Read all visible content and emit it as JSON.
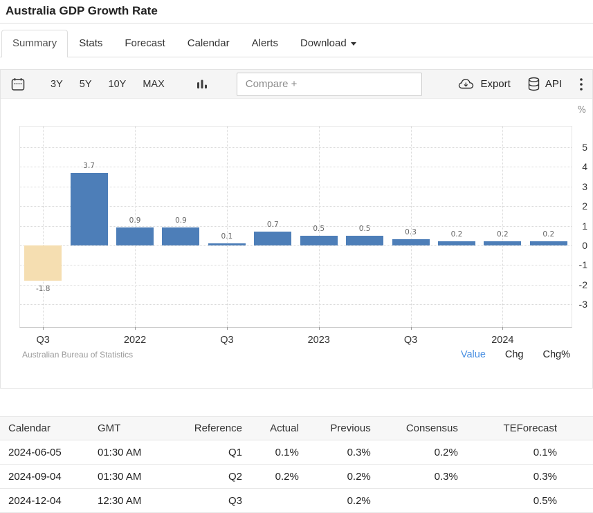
{
  "header": {
    "title": "Australia GDP Growth Rate"
  },
  "tabs": [
    {
      "label": "Summary",
      "active": true
    },
    {
      "label": "Stats",
      "active": false
    },
    {
      "label": "Forecast",
      "active": false
    },
    {
      "label": "Calendar",
      "active": false
    },
    {
      "label": "Alerts",
      "active": false
    },
    {
      "label": "Download",
      "active": false,
      "caret": true
    }
  ],
  "toolbar": {
    "calendar_icon": "calendar-icon",
    "range_buttons": [
      "3Y",
      "5Y",
      "10Y",
      "MAX"
    ],
    "chart_type_icon": "bar-chart-icon",
    "compare_placeholder": "Compare +",
    "export_label": "Export",
    "export_icon": "cloud-download-icon",
    "api_label": "API",
    "api_icon": "database-icon",
    "more_icon": "kebab-menu-icon"
  },
  "chart_data": {
    "type": "bar",
    "title": "Australia GDP Growth Rate",
    "unit_label": "%",
    "values": [
      -1.8,
      3.7,
      0.9,
      0.9,
      0.1,
      0.7,
      0.5,
      0.5,
      0.3,
      0.2,
      0.2,
      0.2
    ],
    "bar_labels": [
      "-1.8",
      "3.7",
      "0.9",
      "0.9",
      "0.1",
      "0.7",
      "0.5",
      "0.5",
      "0.3",
      "0.2",
      "0.2",
      "0.2"
    ],
    "x_ticks": [
      {
        "index": 0,
        "label": "Q3"
      },
      {
        "index": 2,
        "label": "2022"
      },
      {
        "index": 4,
        "label": "Q3"
      },
      {
        "index": 6,
        "label": "2023"
      },
      {
        "index": 8,
        "label": "Q3"
      },
      {
        "index": 10,
        "label": "2024"
      }
    ],
    "y_ticks": [
      5,
      4,
      3,
      2,
      1,
      0,
      -1,
      -2,
      -3
    ],
    "ylim": [
      -4.15,
      6.05
    ],
    "grid": "dotted",
    "legend_position": "none",
    "positive_color": "#4d7eb8",
    "negative_color": "#f5deb1",
    "source": "Australian Bureau of Statistics",
    "modes": [
      {
        "label": "Value",
        "active": true
      },
      {
        "label": "Chg",
        "active": false
      },
      {
        "label": "Chg%",
        "active": false
      }
    ]
  },
  "table": {
    "columns": [
      {
        "label": "Calendar",
        "align": "left"
      },
      {
        "label": "GMT",
        "align": "left"
      },
      {
        "label": "Reference",
        "align": "right"
      },
      {
        "label": "Actual",
        "align": "right"
      },
      {
        "label": "Previous",
        "align": "right"
      },
      {
        "label": "Consensus",
        "align": "right"
      },
      {
        "label": "TEForecast",
        "align": "right"
      }
    ],
    "rows": [
      [
        "2024-06-05",
        "01:30 AM",
        "Q1",
        "0.1%",
        "0.3%",
        "0.2%",
        "0.1%"
      ],
      [
        "2024-09-04",
        "01:30 AM",
        "Q2",
        "0.2%",
        "0.2%",
        "0.3%",
        "0.3%"
      ],
      [
        "2024-12-04",
        "12:30 AM",
        "Q3",
        "",
        "0.2%",
        "",
        "0.5%"
      ]
    ]
  },
  "colors": {
    "accent_link": "#4a90e2",
    "bar_positive": "#4d7eb8",
    "bar_negative": "#f5deb1",
    "toolbar_bg": "#f5f5f5",
    "border": "#e3e3e3"
  }
}
